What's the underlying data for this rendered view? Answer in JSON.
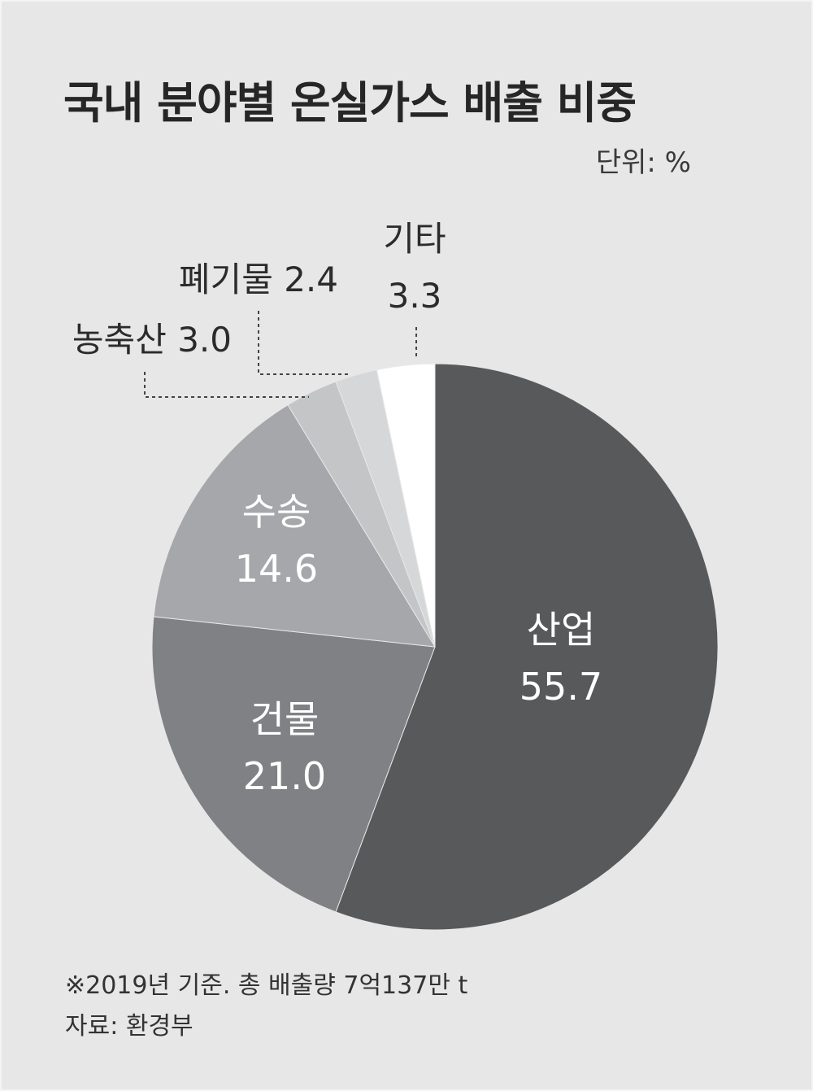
{
  "title": "국내 분야별 온실가스 배출 비중",
  "unit": "단위: %",
  "note": "※2019년 기준. 총 배출량 7억137만 t",
  "source": "자료: 환경부",
  "chart_data": {
    "type": "pie",
    "title": "국내 분야별 온실가스 배출 비중",
    "unit": "%",
    "slices": [
      {
        "label": "산업",
        "value": 55.7,
        "color": "#58595b"
      },
      {
        "label": "건물",
        "value": 21.0,
        "color": "#808184"
      },
      {
        "label": "수송",
        "value": 14.6,
        "color": "#a6a7aa"
      },
      {
        "label": "농축산",
        "value": 3.0,
        "color": "#c4c5c7"
      },
      {
        "label": "폐기물",
        "value": 2.4,
        "color": "#d6d7d8"
      },
      {
        "label": "기타",
        "value": 3.3,
        "color": "#ffffff"
      }
    ]
  }
}
